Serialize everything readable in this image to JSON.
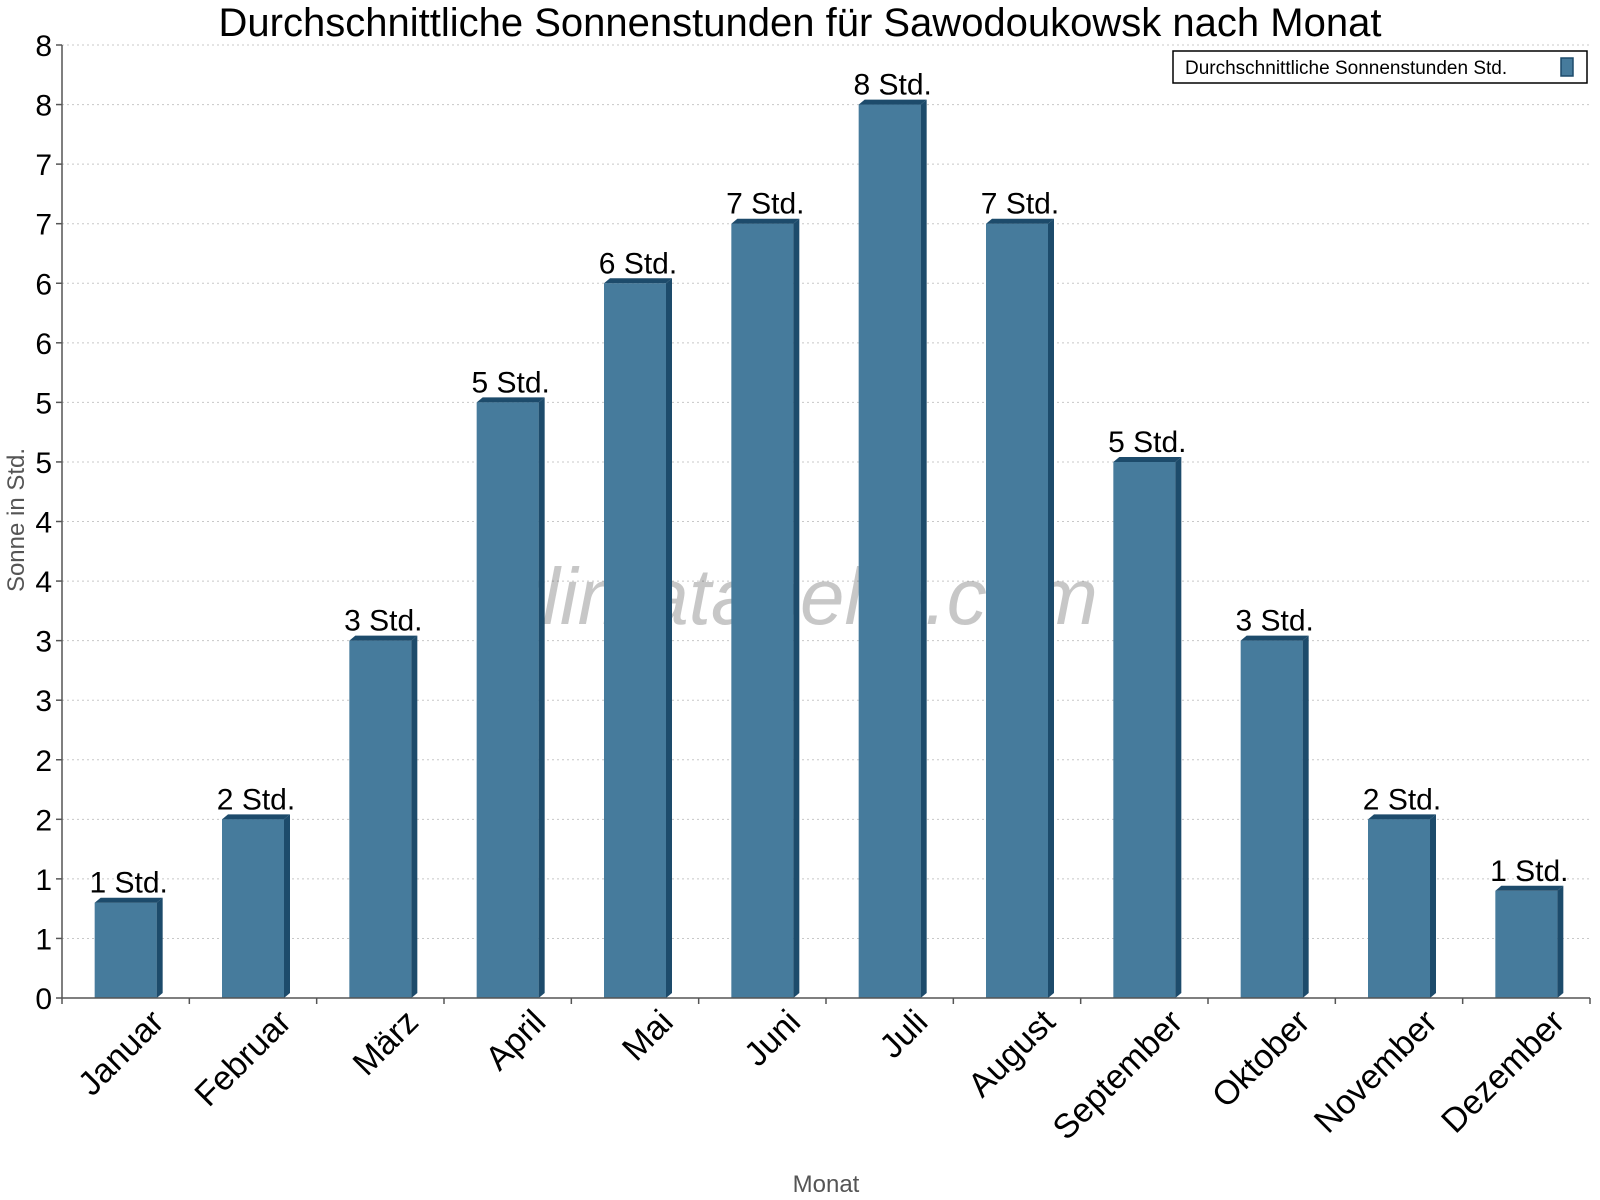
{
  "chart_data": {
    "type": "bar",
    "title": "Durchschnittliche Sonnenstunden für Sawodoukowsk nach Monat",
    "xlabel": "Monat",
    "ylabel": "Sonne in Std.",
    "categories": [
      "Januar",
      "Februar",
      "März",
      "April",
      "Mai",
      "Juni",
      "Juli",
      "August",
      "September",
      "Oktober",
      "November",
      "Dezember"
    ],
    "series": [
      {
        "name": "Durchschnittliche Sonnenstunden Std.",
        "values": [
          1.6,
          3.0,
          6.0,
          10.0,
          12.0,
          13.0,
          15.0,
          13.0,
          9.0,
          6.0,
          3.0,
          1.8
        ],
        "labels": [
          "1 Std.",
          "2 Std.",
          "3 Std.",
          "5 Std.",
          "6 Std.",
          "7 Std.",
          "8 Std.",
          "7 Std.",
          "5 Std.",
          "3 Std.",
          "2 Std.",
          "1 Std."
        ]
      }
    ],
    "ylim": [
      0,
      16
    ],
    "yticks": [
      0,
      1,
      2,
      3,
      4,
      5,
      6,
      7,
      8,
      9,
      10,
      11,
      12,
      13,
      14,
      15,
      16
    ],
    "ytick_labels": [
      "0",
      "1",
      "1",
      "2",
      "2",
      "3",
      "3",
      "4",
      "4",
      "5",
      "5",
      "6",
      "6",
      "7",
      "7",
      "8",
      "8"
    ],
    "grid": true,
    "legend_position": "top-right",
    "colors": {
      "bar": "#467b9c",
      "bar_side": "#1d4b6b",
      "bar_top": "#1d4b6b"
    }
  },
  "watermark": "klimatabelle.com"
}
